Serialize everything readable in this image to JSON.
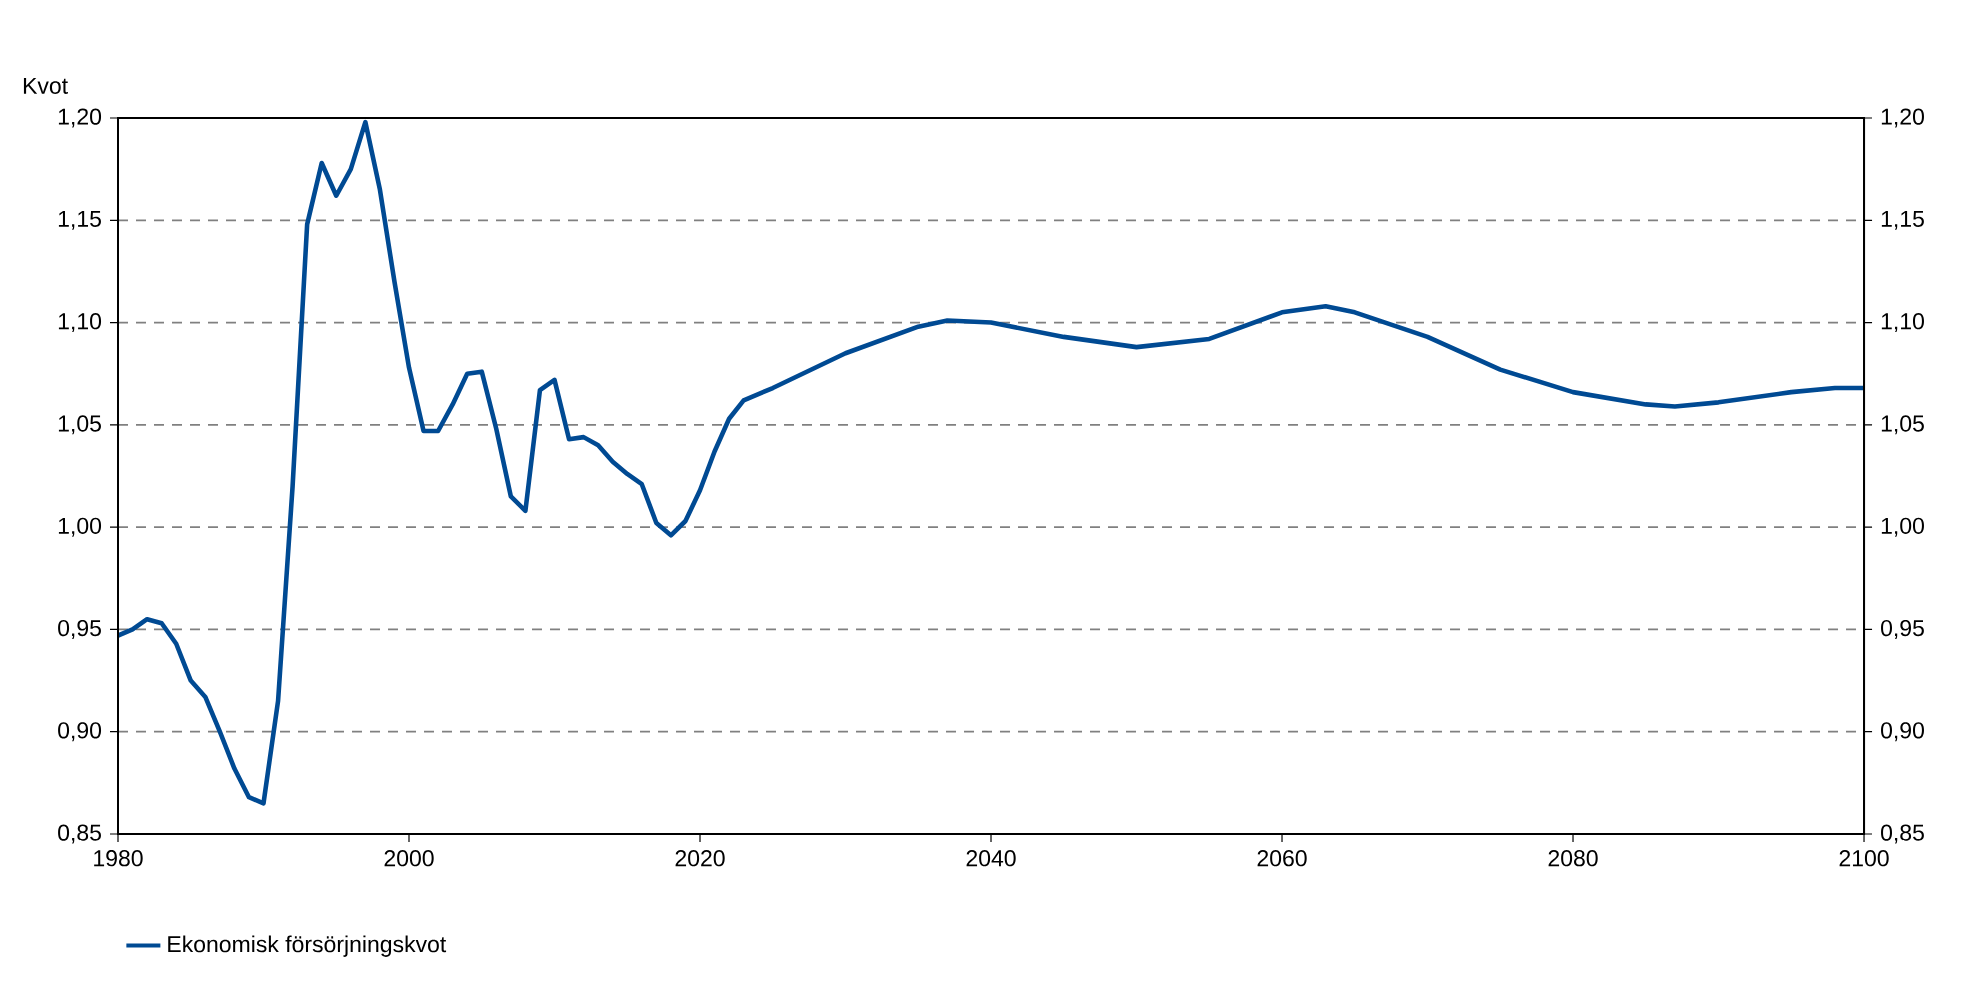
{
  "chart_data": {
    "type": "line",
    "ylabel": "Kvot",
    "x": [
      1980,
      1981,
      1982,
      1983,
      1984,
      1985,
      1986,
      1987,
      1988,
      1989,
      1990,
      1991,
      1992,
      1993,
      1994,
      1995,
      1996,
      1997,
      1998,
      1999,
      2000,
      2001,
      2002,
      2003,
      2004,
      2005,
      2006,
      2007,
      2008,
      2009,
      2010,
      2011,
      2012,
      2013,
      2014,
      2015,
      2016,
      2017,
      2018,
      2019,
      2020,
      2021,
      2022,
      2023,
      2025,
      2030,
      2035,
      2037,
      2040,
      2045,
      2050,
      2055,
      2060,
      2063,
      2065,
      2070,
      2075,
      2080,
      2085,
      2087,
      2090,
      2095,
      2098,
      2100
    ],
    "series": [
      {
        "name": "Ekonomisk försörjningskvot",
        "color": "#004a93",
        "values": [
          0.947,
          0.95,
          0.955,
          0.953,
          0.943,
          0.925,
          0.917,
          0.9,
          0.882,
          0.868,
          0.865,
          0.915,
          1.02,
          1.148,
          1.178,
          1.162,
          1.175,
          1.198,
          1.165,
          1.12,
          1.078,
          1.047,
          1.047,
          1.06,
          1.075,
          1.076,
          1.048,
          1.015,
          1.008,
          1.067,
          1.072,
          1.043,
          1.044,
          1.04,
          1.032,
          1.026,
          1.021,
          1.002,
          0.996,
          1.003,
          1.018,
          1.037,
          1.053,
          1.062,
          1.068,
          1.085,
          1.098,
          1.101,
          1.1,
          1.093,
          1.088,
          1.092,
          1.105,
          1.108,
          1.105,
          1.093,
          1.077,
          1.066,
          1.06,
          1.059,
          1.061,
          1.066,
          1.068,
          1.068
        ]
      }
    ],
    "xlim": [
      1980,
      2100
    ],
    "xticks": [
      1980,
      2000,
      2020,
      2040,
      2060,
      2080,
      2100
    ],
    "ylim": [
      0.85,
      1.2
    ],
    "yticks": [
      {
        "value": 0.85,
        "label": "0,85"
      },
      {
        "value": 0.9,
        "label": "0,90"
      },
      {
        "value": 0.95,
        "label": "0,95"
      },
      {
        "value": 1.0,
        "label": "1,00"
      },
      {
        "value": 1.05,
        "label": "1,05"
      },
      {
        "value": 1.1,
        "label": "1,10"
      },
      {
        "value": 1.15,
        "label": "1,15"
      },
      {
        "value": 1.2,
        "label": "1,20"
      }
    ],
    "y2lim": [
      0.85,
      1.2
    ],
    "y2ticks": [
      {
        "value": 0.85,
        "label": "0,85"
      },
      {
        "value": 0.9,
        "label": "0,90"
      },
      {
        "value": 0.95,
        "label": "0,95"
      },
      {
        "value": 1.0,
        "label": "1,00"
      },
      {
        "value": 1.05,
        "label": "1,05"
      },
      {
        "value": 1.1,
        "label": "1,10"
      },
      {
        "value": 1.15,
        "label": "1,15"
      },
      {
        "value": 1.2,
        "label": "1,20"
      }
    ],
    "grid": "y",
    "legend": "bottom",
    "line_style": "solid",
    "marker": "none"
  }
}
